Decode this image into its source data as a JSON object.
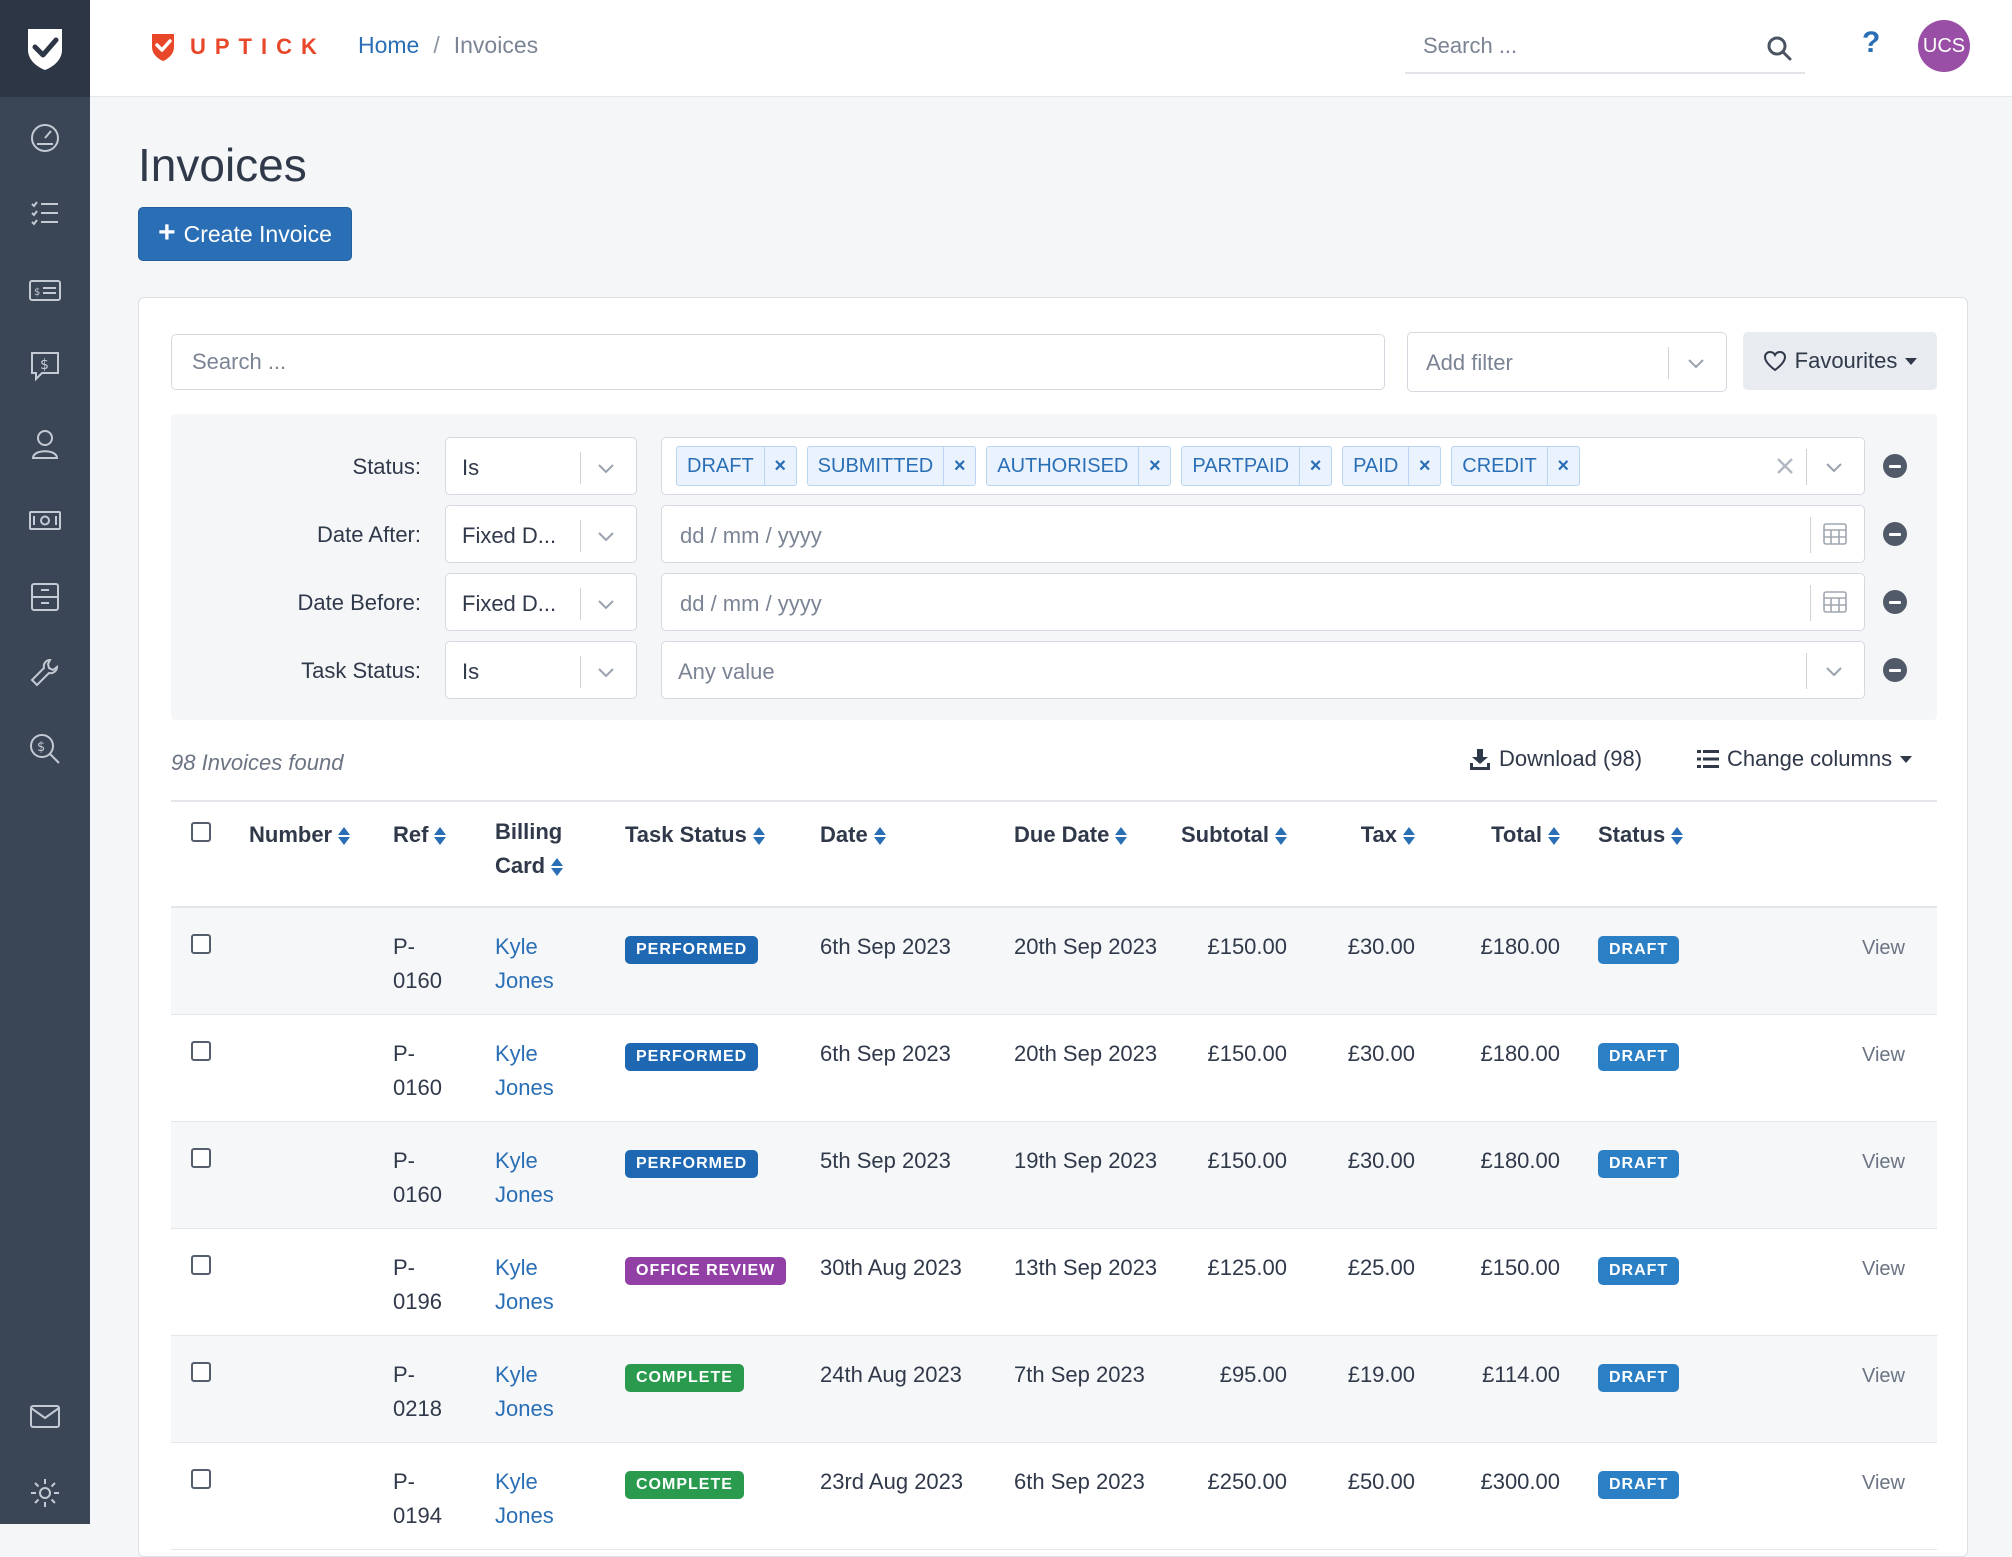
{
  "app": {
    "brand": "UPTICK",
    "accent": "#2a6fb6",
    "brand_color": "#e8472a"
  },
  "breadcrumb": {
    "home": "Home",
    "separator": "/",
    "current": "Invoices"
  },
  "topbar": {
    "search_placeholder": "Search ...",
    "help": "?",
    "avatar_initials": "UCS"
  },
  "sidebar": {
    "items": [
      {
        "icon": "dashboard-gauge-icon"
      },
      {
        "icon": "task-list-icon"
      },
      {
        "icon": "invoice-card-icon"
      },
      {
        "icon": "quote-dollar-icon"
      },
      {
        "icon": "user-icon"
      },
      {
        "icon": "money-icon"
      },
      {
        "icon": "archive-box-icon"
      },
      {
        "icon": "wrench-icon"
      },
      {
        "icon": "search-dollar-icon"
      },
      {
        "icon": "mail-icon"
      },
      {
        "icon": "settings-gear-icon"
      }
    ]
  },
  "page": {
    "title": "Invoices",
    "create_button": "Create Invoice"
  },
  "toolbar": {
    "search_placeholder": "Search ...",
    "add_filter_placeholder": "Add filter",
    "favourites_label": "Favourites"
  },
  "filters": {
    "status": {
      "label": "Status:",
      "operator": "Is",
      "chips": [
        "DRAFT",
        "SUBMITTED",
        "AUTHORISED",
        "PARTPAID",
        "PAID",
        "CREDIT"
      ]
    },
    "date_after": {
      "label": "Date After:",
      "operator": "Fixed D...",
      "placeholder": "dd / mm / yyyy"
    },
    "date_before": {
      "label": "Date Before:",
      "operator": "Fixed D...",
      "placeholder": "dd / mm / yyyy"
    },
    "task_status": {
      "label": "Task Status:",
      "operator": "Is",
      "placeholder": "Any value"
    }
  },
  "results": {
    "count_text": "98 Invoices found",
    "download_label": "Download (98)",
    "columns_label": "Change columns"
  },
  "table": {
    "headers": {
      "number": "Number",
      "ref": "Ref",
      "billing_line1": "Billing",
      "billing_line2": "Card",
      "task_status": "Task Status",
      "date": "Date",
      "due_date": "Due Date",
      "subtotal": "Subtotal",
      "tax": "Tax",
      "total": "Total",
      "status": "Status"
    },
    "view_label": "View",
    "rows": [
      {
        "ref1": "P-",
        "ref2": "0160",
        "card1": "Kyle",
        "card2": "Jones",
        "task_status": "PERFORMED",
        "date": "6th Sep 2023",
        "due": "20th Sep 2023",
        "subtotal": "£150.00",
        "tax": "£30.00",
        "total": "£180.00",
        "status": "DRAFT"
      },
      {
        "ref1": "P-",
        "ref2": "0160",
        "card1": "Kyle",
        "card2": "Jones",
        "task_status": "PERFORMED",
        "date": "6th Sep 2023",
        "due": "20th Sep 2023",
        "subtotal": "£150.00",
        "tax": "£30.00",
        "total": "£180.00",
        "status": "DRAFT"
      },
      {
        "ref1": "P-",
        "ref2": "0160",
        "card1": "Kyle",
        "card2": "Jones",
        "task_status": "PERFORMED",
        "date": "5th Sep 2023",
        "due": "19th Sep 2023",
        "subtotal": "£150.00",
        "tax": "£30.00",
        "total": "£180.00",
        "status": "DRAFT"
      },
      {
        "ref1": "P-",
        "ref2": "0196",
        "card1": "Kyle",
        "card2": "Jones",
        "task_status": "OFFICE REVIEW",
        "date": "30th Aug 2023",
        "due": "13th Sep 2023",
        "subtotal": "£125.00",
        "tax": "£25.00",
        "total": "£150.00",
        "status": "DRAFT"
      },
      {
        "ref1": "P-",
        "ref2": "0218",
        "card1": "Kyle",
        "card2": "Jones",
        "task_status": "COMPLETE",
        "date": "24th Aug 2023",
        "due": "7th Sep 2023",
        "subtotal": "£95.00",
        "tax": "£19.00",
        "total": "£114.00",
        "status": "DRAFT"
      },
      {
        "ref1": "P-",
        "ref2": "0194",
        "card1": "Kyle",
        "card2": "Jones",
        "task_status": "COMPLETE",
        "date": "23rd Aug 2023",
        "due": "6th Sep 2023",
        "subtotal": "£250.00",
        "tax": "£50.00",
        "total": "£300.00",
        "status": "DRAFT"
      }
    ]
  }
}
